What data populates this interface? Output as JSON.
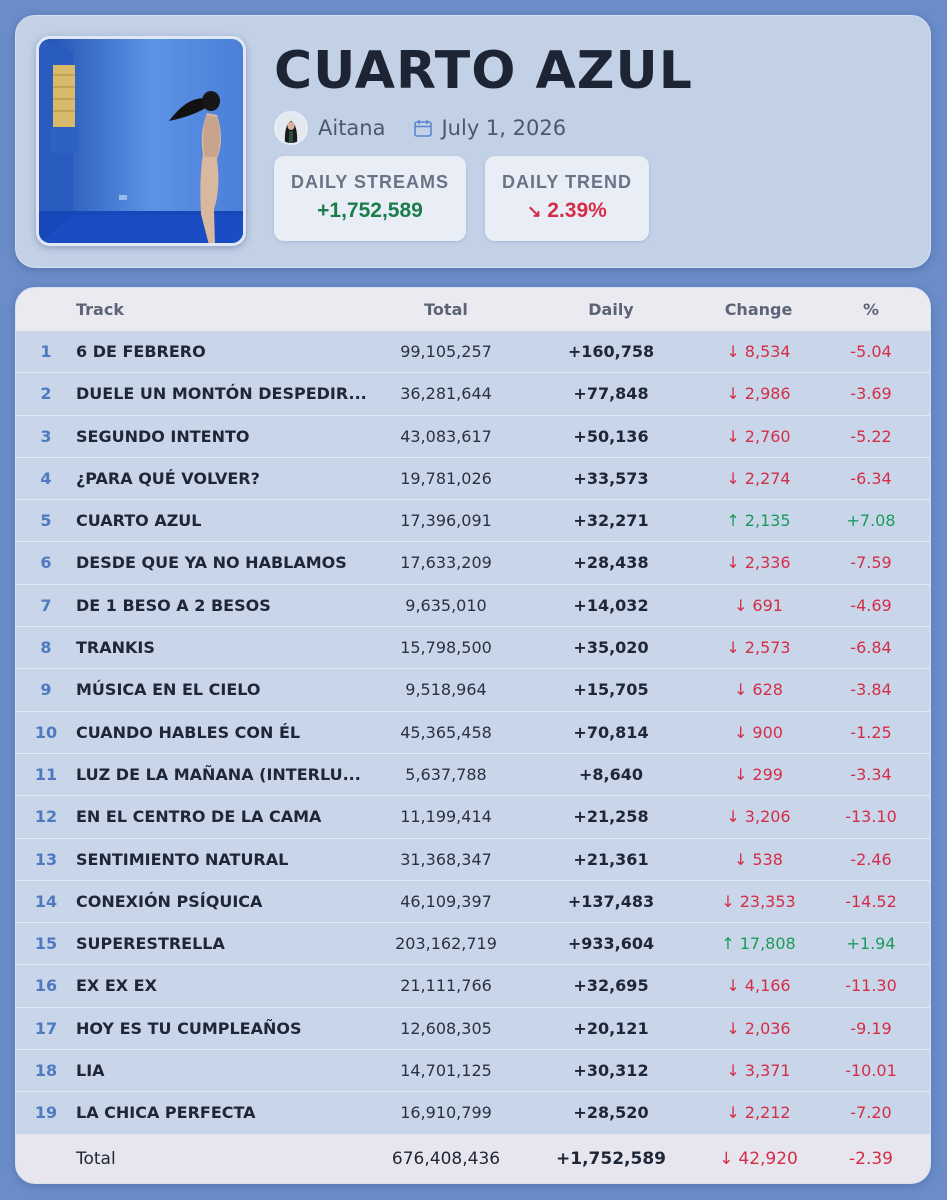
{
  "album": {
    "title": "CUARTO AZUL",
    "artist": "Aitana",
    "date": "July 1, 2026"
  },
  "stats": {
    "daily_streams_label": "DAILY STREAMS",
    "daily_streams_value": "+1,752,589",
    "daily_trend_label": "DAILY TREND",
    "daily_trend_arrow": "↘",
    "daily_trend_value": "2.39%"
  },
  "colors": {
    "background": "#6a8cc8",
    "positive": "#1b9a5c",
    "negative": "#d42d47",
    "rank": "#4f7ac0"
  },
  "icons": {
    "calendar": "calendar-icon",
    "down": "arrow-down-icon",
    "up": "arrow-up-icon",
    "trend": "trend-down-icon"
  },
  "table": {
    "headers": {
      "track": "Track",
      "total": "Total",
      "daily": "Daily",
      "change": "Change",
      "pct": "%"
    },
    "rows": [
      {
        "rank": "1",
        "track": "6 DE FEBRERO",
        "total": "99,105,257",
        "daily": "+160,758",
        "dir": "down",
        "change": "8,534",
        "pct": "-5.04"
      },
      {
        "rank": "2",
        "track": "DUELE UN MONTÓN DESPEDIR...",
        "total": "36,281,644",
        "daily": "+77,848",
        "dir": "down",
        "change": "2,986",
        "pct": "-3.69"
      },
      {
        "rank": "3",
        "track": "SEGUNDO INTENTO",
        "total": "43,083,617",
        "daily": "+50,136",
        "dir": "down",
        "change": "2,760",
        "pct": "-5.22"
      },
      {
        "rank": "4",
        "track": "¿PARA QUÉ VOLVER?",
        "total": "19,781,026",
        "daily": "+33,573",
        "dir": "down",
        "change": "2,274",
        "pct": "-6.34"
      },
      {
        "rank": "5",
        "track": "CUARTO AZUL",
        "total": "17,396,091",
        "daily": "+32,271",
        "dir": "up",
        "change": "2,135",
        "pct": "+7.08"
      },
      {
        "rank": "6",
        "track": "DESDE QUE YA NO HABLAMOS",
        "total": "17,633,209",
        "daily": "+28,438",
        "dir": "down",
        "change": "2,336",
        "pct": "-7.59"
      },
      {
        "rank": "7",
        "track": "DE 1 BESO A 2 BESOS",
        "total": "9,635,010",
        "daily": "+14,032",
        "dir": "down",
        "change": "691",
        "pct": "-4.69"
      },
      {
        "rank": "8",
        "track": "TRANKIS",
        "total": "15,798,500",
        "daily": "+35,020",
        "dir": "down",
        "change": "2,573",
        "pct": "-6.84"
      },
      {
        "rank": "9",
        "track": "MÚSICA EN EL CIELO",
        "total": "9,518,964",
        "daily": "+15,705",
        "dir": "down",
        "change": "628",
        "pct": "-3.84"
      },
      {
        "rank": "10",
        "track": "CUANDO HABLES CON ÉL",
        "total": "45,365,458",
        "daily": "+70,814",
        "dir": "down",
        "change": "900",
        "pct": "-1.25"
      },
      {
        "rank": "11",
        "track": "LUZ DE LA MAÑANA (INTERLU...",
        "total": "5,637,788",
        "daily": "+8,640",
        "dir": "down",
        "change": "299",
        "pct": "-3.34"
      },
      {
        "rank": "12",
        "track": "EN EL CENTRO DE LA CAMA",
        "total": "11,199,414",
        "daily": "+21,258",
        "dir": "down",
        "change": "3,206",
        "pct": "-13.10"
      },
      {
        "rank": "13",
        "track": "SENTIMIENTO NATURAL",
        "total": "31,368,347",
        "daily": "+21,361",
        "dir": "down",
        "change": "538",
        "pct": "-2.46"
      },
      {
        "rank": "14",
        "track": "CONEXIÓN PSÍQUICA",
        "total": "46,109,397",
        "daily": "+137,483",
        "dir": "down",
        "change": "23,353",
        "pct": "-14.52"
      },
      {
        "rank": "15",
        "track": "SUPERESTRELLA",
        "total": "203,162,719",
        "daily": "+933,604",
        "dir": "up",
        "change": "17,808",
        "pct": "+1.94"
      },
      {
        "rank": "16",
        "track": "EX EX EX",
        "total": "21,111,766",
        "daily": "+32,695",
        "dir": "down",
        "change": "4,166",
        "pct": "-11.30"
      },
      {
        "rank": "17",
        "track": "HOY ES TU CUMPLEAÑOS",
        "total": "12,608,305",
        "daily": "+20,121",
        "dir": "down",
        "change": "2,036",
        "pct": "-9.19"
      },
      {
        "rank": "18",
        "track": "LIA",
        "total": "14,701,125",
        "daily": "+30,312",
        "dir": "down",
        "change": "3,371",
        "pct": "-10.01"
      },
      {
        "rank": "19",
        "track": "LA CHICA PERFECTA",
        "total": "16,910,799",
        "daily": "+28,520",
        "dir": "down",
        "change": "2,212",
        "pct": "-7.20"
      }
    ],
    "footer": {
      "label": "Total",
      "total": "676,408,436",
      "daily": "+1,752,589",
      "dir": "down",
      "change": "42,920",
      "pct": "-2.39"
    }
  }
}
